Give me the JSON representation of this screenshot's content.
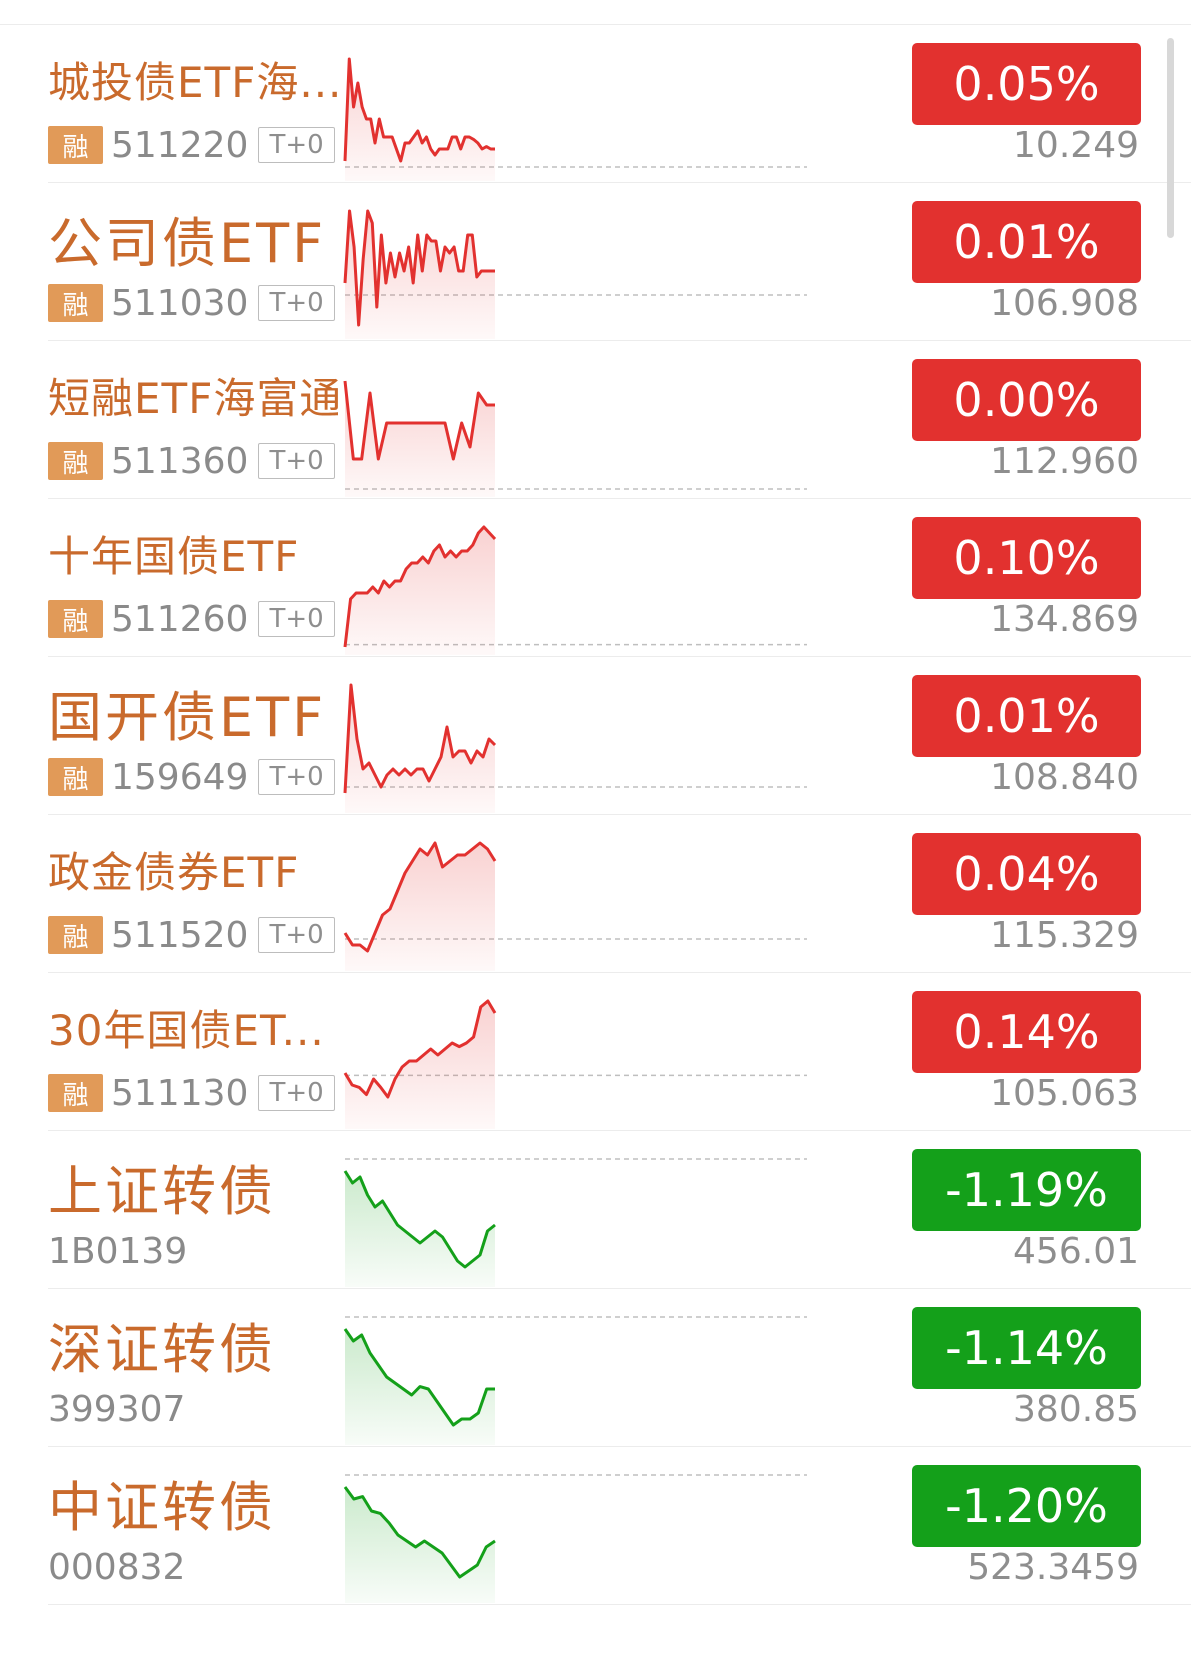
{
  "colors": {
    "up": "#e2312f",
    "down": "#14a01a",
    "name": "#c96a2c",
    "muted": "#8a8a8a",
    "tag": "#e19a58"
  },
  "items": [
    {
      "name": "城投债ETF海...",
      "code": "511220",
      "rong": "融",
      "t0": "T+0",
      "change": "0.05%",
      "price": "10.249",
      "dir": "up",
      "big": false
    },
    {
      "name": "公司债ETF",
      "code": "511030",
      "rong": "融",
      "t0": "T+0",
      "change": "0.01%",
      "price": "106.908",
      "dir": "up",
      "big": true
    },
    {
      "name": "短融ETF海富通",
      "code": "511360",
      "rong": "融",
      "t0": "T+0",
      "change": "0.00%",
      "price": "112.960",
      "dir": "up",
      "big": false
    },
    {
      "name": "十年国债ETF",
      "code": "511260",
      "rong": "融",
      "t0": "T+0",
      "change": "0.10%",
      "price": "134.869",
      "dir": "up",
      "big": false
    },
    {
      "name": "国开债ETF",
      "code": "159649",
      "rong": "融",
      "t0": "T+0",
      "change": "0.01%",
      "price": "108.840",
      "dir": "up",
      "big": true
    },
    {
      "name": "政金债券ETF",
      "code": "511520",
      "rong": "融",
      "t0": "T+0",
      "change": "0.04%",
      "price": "115.329",
      "dir": "up",
      "big": false
    },
    {
      "name": "30年国债ET...",
      "code": "511130",
      "rong": "融",
      "t0": "T+0",
      "change": "0.14%",
      "price": "105.063",
      "dir": "up",
      "big": false
    },
    {
      "name": "上证转债",
      "code": "1B0139",
      "change": "-1.19%",
      "price": "456.01",
      "dir": "down",
      "big": true
    },
    {
      "name": "深证转债",
      "code": "399307",
      "change": "-1.14%",
      "price": "380.85",
      "dir": "down",
      "big": true
    },
    {
      "name": "中证转债",
      "code": "000832",
      "change": "-1.20%",
      "price": "523.3459",
      "dir": "down",
      "big": true
    }
  ],
  "sparks": [
    {
      "ref": 0.95,
      "pts": [
        0.9,
        0.05,
        0.45,
        0.25,
        0.45,
        0.55,
        0.55,
        0.75,
        0.55,
        0.7,
        0.7,
        0.7,
        0.8,
        0.9,
        0.75,
        0.75,
        0.7,
        0.65,
        0.75,
        0.7,
        0.8,
        0.85,
        0.8,
        0.8,
        0.8,
        0.7,
        0.7,
        0.8,
        0.7,
        0.7,
        0.72,
        0.75,
        0.8,
        0.78,
        0.8,
        0.8
      ]
    },
    {
      "ref": 0.7,
      "pts": [
        0.6,
        0.0,
        0.3,
        0.95,
        0.4,
        0.0,
        0.1,
        0.8,
        0.2,
        0.6,
        0.35,
        0.55,
        0.35,
        0.5,
        0.3,
        0.6,
        0.2,
        0.5,
        0.2,
        0.25,
        0.25,
        0.5,
        0.3,
        0.35,
        0.3,
        0.5,
        0.5,
        0.2,
        0.2,
        0.55,
        0.5,
        0.5,
        0.5,
        0.5
      ]
    },
    {
      "ref": 1.0,
      "pts": [
        0.1,
        0.75,
        0.75,
        0.2,
        0.75,
        0.45,
        0.45,
        0.45,
        0.45,
        0.45,
        0.45,
        0.45,
        0.45,
        0.75,
        0.45,
        0.65,
        0.2,
        0.3,
        0.3
      ]
    },
    {
      "ref": 0.98,
      "pts": [
        1.0,
        0.6,
        0.55,
        0.55,
        0.55,
        0.5,
        0.55,
        0.45,
        0.5,
        0.45,
        0.45,
        0.35,
        0.3,
        0.3,
        0.25,
        0.3,
        0.2,
        0.15,
        0.25,
        0.2,
        0.25,
        0.2,
        0.2,
        0.15,
        0.05,
        0.0,
        0.05,
        0.1
      ]
    },
    {
      "ref": 0.85,
      "pts": [
        0.9,
        0.0,
        0.45,
        0.7,
        0.65,
        0.75,
        0.85,
        0.75,
        0.7,
        0.75,
        0.7,
        0.75,
        0.7,
        0.7,
        0.8,
        0.7,
        0.6,
        0.35,
        0.6,
        0.55,
        0.55,
        0.65,
        0.55,
        0.6,
        0.45,
        0.5
      ]
    },
    {
      "ref": 0.8,
      "pts": [
        0.75,
        0.85,
        0.85,
        0.9,
        0.75,
        0.6,
        0.55,
        0.4,
        0.25,
        0.15,
        0.05,
        0.1,
        0.0,
        0.2,
        0.15,
        0.1,
        0.1,
        0.05,
        0.0,
        0.05,
        0.15
      ]
    },
    {
      "ref": 0.62,
      "pts": [
        0.6,
        0.7,
        0.72,
        0.78,
        0.65,
        0.72,
        0.8,
        0.65,
        0.55,
        0.5,
        0.5,
        0.45,
        0.4,
        0.45,
        0.4,
        0.35,
        0.38,
        0.35,
        0.3,
        0.05,
        0.0,
        0.1
      ]
    },
    {
      "ref": 0.0,
      "pts": [
        0.1,
        0.2,
        0.15,
        0.3,
        0.4,
        0.35,
        0.45,
        0.55,
        0.6,
        0.65,
        0.7,
        0.65,
        0.6,
        0.65,
        0.75,
        0.85,
        0.9,
        0.85,
        0.8,
        0.6,
        0.55
      ]
    },
    {
      "ref": 0.0,
      "pts": [
        0.1,
        0.2,
        0.15,
        0.3,
        0.4,
        0.5,
        0.55,
        0.6,
        0.65,
        0.58,
        0.6,
        0.7,
        0.8,
        0.9,
        0.85,
        0.85,
        0.8,
        0.6,
        0.6
      ]
    },
    {
      "ref": 0.0,
      "pts": [
        0.1,
        0.2,
        0.18,
        0.3,
        0.32,
        0.4,
        0.5,
        0.55,
        0.6,
        0.55,
        0.6,
        0.65,
        0.75,
        0.85,
        0.8,
        0.75,
        0.6,
        0.55
      ]
    }
  ]
}
